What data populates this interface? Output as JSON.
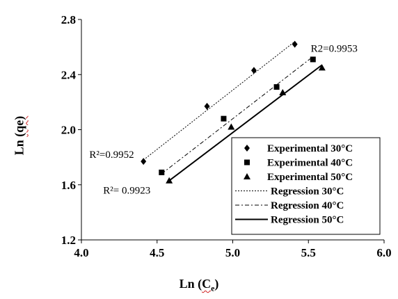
{
  "chart_data": {
    "type": "scatter",
    "xlabel": {
      "main": "Ln",
      "open": "(",
      "sym": "C",
      "sub": "e",
      "close": ")"
    },
    "ylabel": {
      "main": "Ln",
      "paren": "(qe)"
    },
    "xlim": [
      4.0,
      6.0
    ],
    "ylim": [
      1.2,
      2.8
    ],
    "xticks": [
      "4.0",
      "4.5",
      "5.0",
      "5.5",
      "6.0"
    ],
    "yticks": [
      "1.2",
      "1.6",
      "2.0",
      "2.4",
      "2.8"
    ],
    "grid": false,
    "legend_position": "bottom-right",
    "series": [
      {
        "name": "Experimental 30°C",
        "marker": "diamond",
        "color": "#000000",
        "x": [
          4.41,
          4.83,
          5.14,
          5.41
        ],
        "y": [
          1.77,
          2.17,
          2.43,
          2.62
        ]
      },
      {
        "name": "Experimental 40°C",
        "marker": "square",
        "color": "#000000",
        "x": [
          4.53,
          4.94,
          5.29,
          5.53
        ],
        "y": [
          1.69,
          2.08,
          2.31,
          2.51
        ]
      },
      {
        "name": "Experimental 50°C",
        "marker": "triangle",
        "color": "#000000",
        "x": [
          4.58,
          4.99,
          5.33,
          5.59
        ],
        "y": [
          1.63,
          2.02,
          2.27,
          2.45
        ]
      }
    ],
    "regressions": [
      {
        "name": "Regression 30°C",
        "style": "dotted",
        "x": [
          4.41,
          5.41
        ],
        "y": [
          1.78,
          2.64
        ]
      },
      {
        "name": "Regression 40°C",
        "style": "dashdot",
        "x": [
          4.53,
          5.53
        ],
        "y": [
          1.68,
          2.53
        ]
      },
      {
        "name": "Regression 50°C",
        "style": "solid",
        "x": [
          4.58,
          5.59
        ],
        "y": [
          1.63,
          2.47
        ]
      }
    ],
    "annotations": [
      {
        "text": "R²=0.9952",
        "x": 4.2,
        "y": 1.795
      },
      {
        "text": "R2=0.9953",
        "x": 5.67,
        "y": 2.565
      },
      {
        "text": "R²= 0.9923",
        "x": 4.3,
        "y": 1.535
      }
    ]
  }
}
